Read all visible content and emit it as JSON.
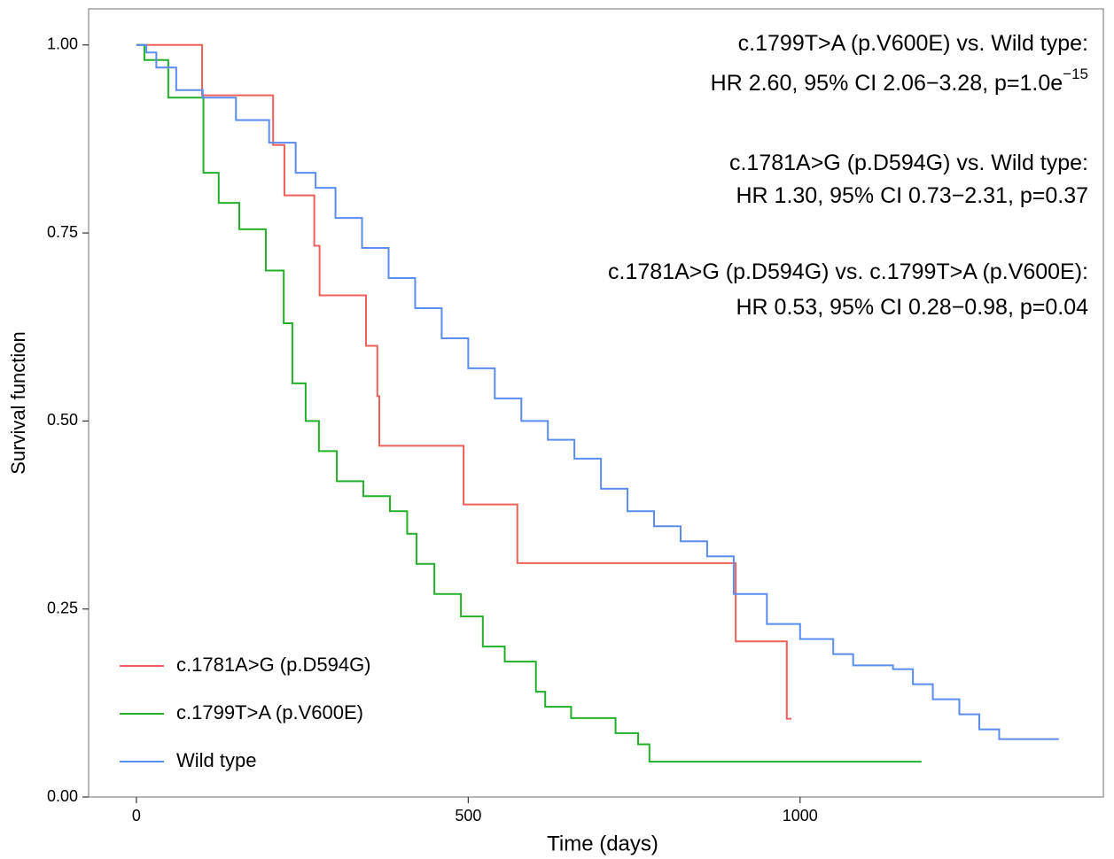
{
  "chart_data": {
    "type": "step",
    "xlabel": "Time (days)",
    "ylabel": "Survival function",
    "xlim": [
      -72,
      1457
    ],
    "ylim": [
      0,
      1.048
    ],
    "xticks": [
      0,
      500,
      1000
    ],
    "yticks": [
      {
        "value": 0,
        "label": "0.00"
      },
      {
        "value": 0.25,
        "label": "0.25"
      },
      {
        "value": 0.5,
        "label": "0.50"
      },
      {
        "value": 0.75,
        "label": "0.75"
      },
      {
        "value": 1,
        "label": "1.00"
      }
    ],
    "legend": "bottom-left",
    "annotations": [
      {
        "text": "c.1799T>A (p.V600E) vs. Wild type:"
      },
      {
        "text": "HR 2.60, 95% CI 2.06−3.28, p=1.0e",
        "superscript": "−15"
      },
      {
        "text": "c.1781A>G (p.D594G) vs. Wild type:"
      },
      {
        "text": "HR 1.30, 95% CI 0.73−2.31, p=0.37"
      },
      {
        "text": "c.1781A>G (p.D594G) vs. c.1799T>A (p.V600E):"
      },
      {
        "text": "HR 0.53, 95% CI 0.28−0.98, p=0.04"
      }
    ],
    "series": [
      {
        "name": "c.1781A>G (p.D594G)",
        "color": "#f0605a",
        "x": [
          0,
          99,
          206,
          223,
          268,
          276,
          346,
          363,
          366,
          493,
          574,
          903,
          980,
          987
        ],
        "values": [
          1,
          0.933,
          0.867,
          0.8,
          0.733,
          0.667,
          0.6,
          0.533,
          0.467,
          0.389,
          0.311,
          0.207,
          0.104,
          0.104
        ]
      },
      {
        "name": "c.1799T>A (p.V600E)",
        "color": "#22b02a",
        "x": [
          0,
          12,
          48,
          101,
          124,
          155,
          195,
          222,
          235,
          255,
          275,
          302,
          342,
          382,
          408,
          422,
          449,
          489,
          522,
          555,
          602,
          616,
          655,
          722,
          756,
          773,
          1183
        ],
        "values": [
          1,
          0.98,
          0.93,
          0.83,
          0.79,
          0.755,
          0.7,
          0.63,
          0.55,
          0.5,
          0.46,
          0.42,
          0.4,
          0.38,
          0.35,
          0.31,
          0.27,
          0.24,
          0.2,
          0.18,
          0.14,
          0.12,
          0.105,
          0.085,
          0.07,
          0.047,
          0.047
        ]
      },
      {
        "name": "Wild type",
        "color": "#5b8df0",
        "x": [
          0,
          15,
          30,
          60,
          100,
          150,
          200,
          240,
          270,
          300,
          340,
          380,
          420,
          460,
          500,
          540,
          580,
          620,
          660,
          700,
          740,
          780,
          820,
          860,
          900,
          950,
          1000,
          1050,
          1080,
          1140,
          1170,
          1200,
          1240,
          1270,
          1300,
          1390
        ],
        "values": [
          1,
          0.99,
          0.97,
          0.94,
          0.93,
          0.9,
          0.87,
          0.83,
          0.81,
          0.77,
          0.73,
          0.69,
          0.65,
          0.61,
          0.57,
          0.53,
          0.5,
          0.475,
          0.45,
          0.41,
          0.38,
          0.36,
          0.34,
          0.32,
          0.27,
          0.23,
          0.21,
          0.19,
          0.175,
          0.17,
          0.15,
          0.13,
          0.11,
          0.09,
          0.077,
          0.077
        ]
      }
    ]
  }
}
